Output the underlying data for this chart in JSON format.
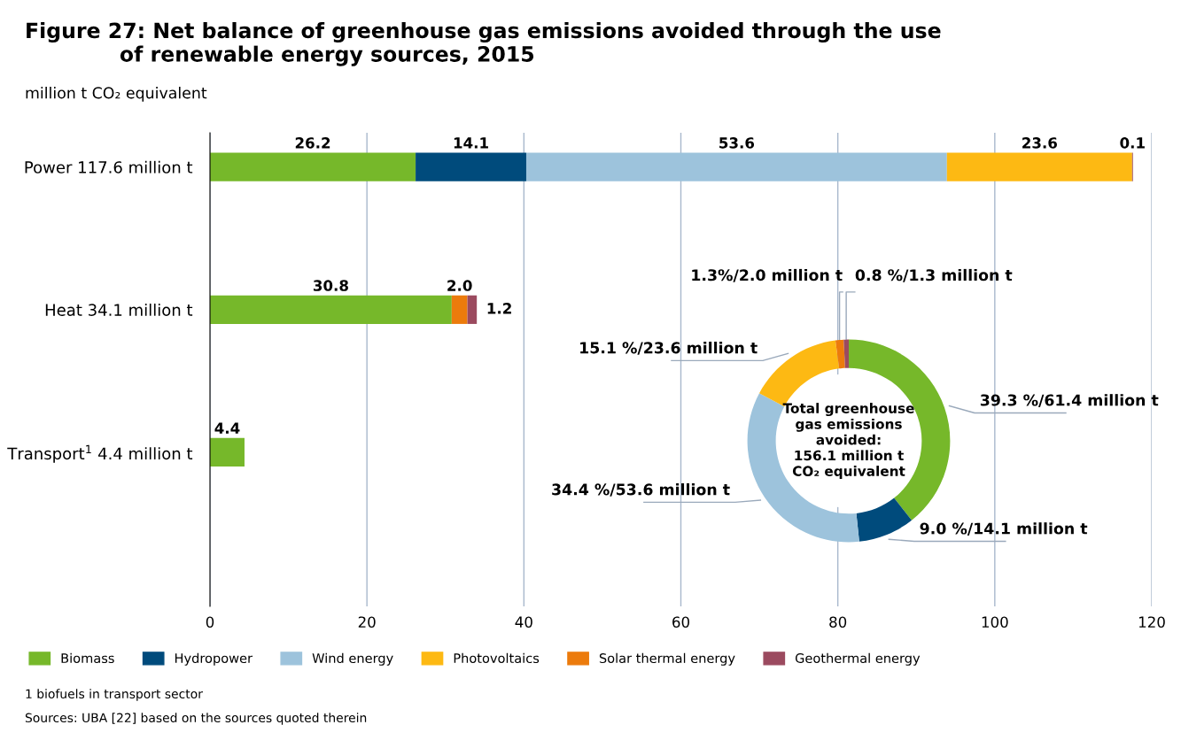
{
  "chart_data": [
    {
      "type": "bar",
      "orientation": "horizontal",
      "stacked": true,
      "title": "Figure 27: Net balance of greenhouse gas emissions avoided through the use\n             of renewable energy sources, 2015",
      "subtitle": "million t CO₂ equivalent",
      "categories": [
        "Power 117.6 million t",
        "Heat 34.1 million t",
        "Transport$^{1}$ 4.4 million t"
      ],
      "series": [
        {
          "name": "Biomass",
          "color": "#76b82a",
          "values": [
            26.2,
            30.8,
            4.4
          ],
          "value_labels": [
            "26.2",
            "30.8",
            "4.4"
          ]
        },
        {
          "name": "Hydropower",
          "color": "#004b7c",
          "values": [
            14.1,
            null,
            null
          ],
          "value_labels": [
            "14.1",
            null,
            null
          ]
        },
        {
          "name": "Wind energy",
          "color": "#9dc3dc",
          "values": [
            53.6,
            null,
            null
          ],
          "value_labels": [
            "53.6",
            null,
            null
          ]
        },
        {
          "name": "Photovoltaics",
          "color": "#fdb913",
          "values": [
            23.6,
            null,
            null
          ],
          "value_labels": [
            "23.6",
            null,
            null
          ]
        },
        {
          "name": "Solar thermal energy",
          "color": "#ec7b0c",
          "values": [
            null,
            2.0,
            null
          ],
          "value_labels": [
            null,
            "2.0",
            null
          ]
        },
        {
          "name": "Geothermal energy",
          "color": "#9b4a5f",
          "values": [
            0.1,
            1.2,
            null
          ],
          "value_labels": [
            "0.1",
            "1.2",
            null
          ]
        }
      ],
      "xlim": [
        0,
        120
      ],
      "xticks": [
        0,
        20,
        40,
        60,
        80,
        100,
        120
      ],
      "grid": "x",
      "legend": "bottom",
      "annotations": [
        "1 biofuels in transport sector",
        "Sources: UBA [22] based on the sources quoted therein"
      ]
    },
    {
      "type": "donut",
      "categories": [
        "39.3 %/61.4 million t",
        "9.0 %/14.1 million t",
        "34.4 %/53.6 million t",
        "15.1 %/23.6 million t",
        "1.3%/2.0 million t",
        "0.8 %/1.3 million t"
      ],
      "values": [
        39.3,
        9.0,
        34.4,
        15.1,
        1.3,
        0.8
      ],
      "colors": [
        "#76b82a",
        "#004b7c",
        "#9dc3dc",
        "#fdb913",
        "#ec7b0c",
        "#9b4a5f"
      ],
      "annotations": [
        "Total greenhouse\ngas emissions\navoided:\n156.1 million t\nCO₂ equivalent"
      ]
    }
  ]
}
